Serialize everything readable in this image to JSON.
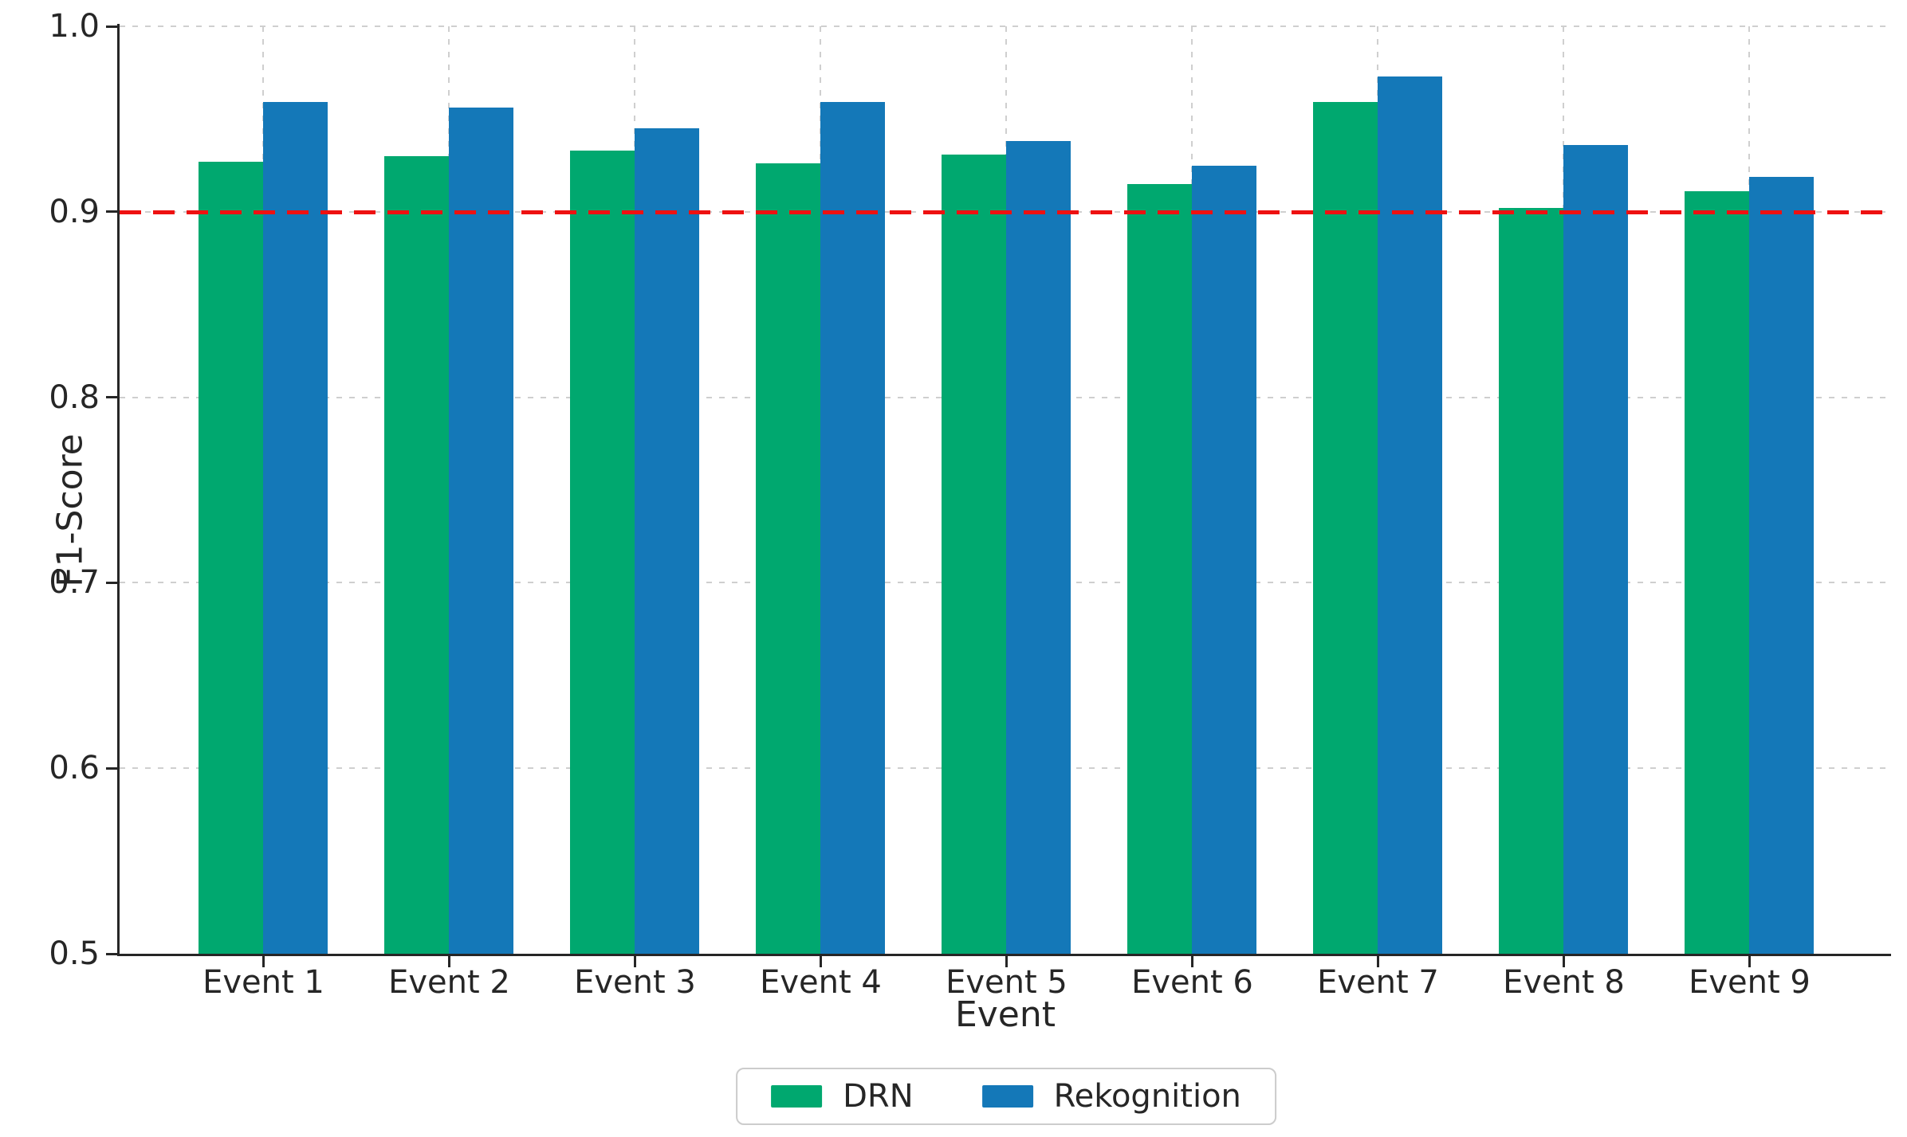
{
  "chart_data": {
    "type": "bar",
    "title": "",
    "xlabel": "Event",
    "ylabel": "F1-Score",
    "categories": [
      "Event 1",
      "Event 2",
      "Event 3",
      "Event 4",
      "Event 5",
      "Event 6",
      "Event 7",
      "Event 8",
      "Event 9"
    ],
    "series": [
      {
        "name": "DRN",
        "color": "#00a86f",
        "values": [
          0.927,
          0.93,
          0.933,
          0.926,
          0.931,
          0.915,
          0.959,
          0.902,
          0.911
        ]
      },
      {
        "name": "Rekognition",
        "color": "#1478b8",
        "values": [
          0.959,
          0.956,
          0.945,
          0.959,
          0.938,
          0.925,
          0.973,
          0.936,
          0.919
        ]
      }
    ],
    "ylim": [
      0.5,
      1.0
    ],
    "yticks": [
      0.5,
      0.6,
      0.7,
      0.8,
      0.9,
      1.0
    ],
    "ytick_labels": [
      "0.5",
      "0.6",
      "0.7",
      "0.8",
      "0.9",
      "1.0"
    ],
    "reference_line": {
      "value": 0.9,
      "color": "#ee1111",
      "style": "dashed"
    },
    "grid": true,
    "legend_position": "bottom-center",
    "colors": {
      "axis": "#262626",
      "gridline": "#cfcfcf",
      "background": "#ffffff"
    }
  }
}
